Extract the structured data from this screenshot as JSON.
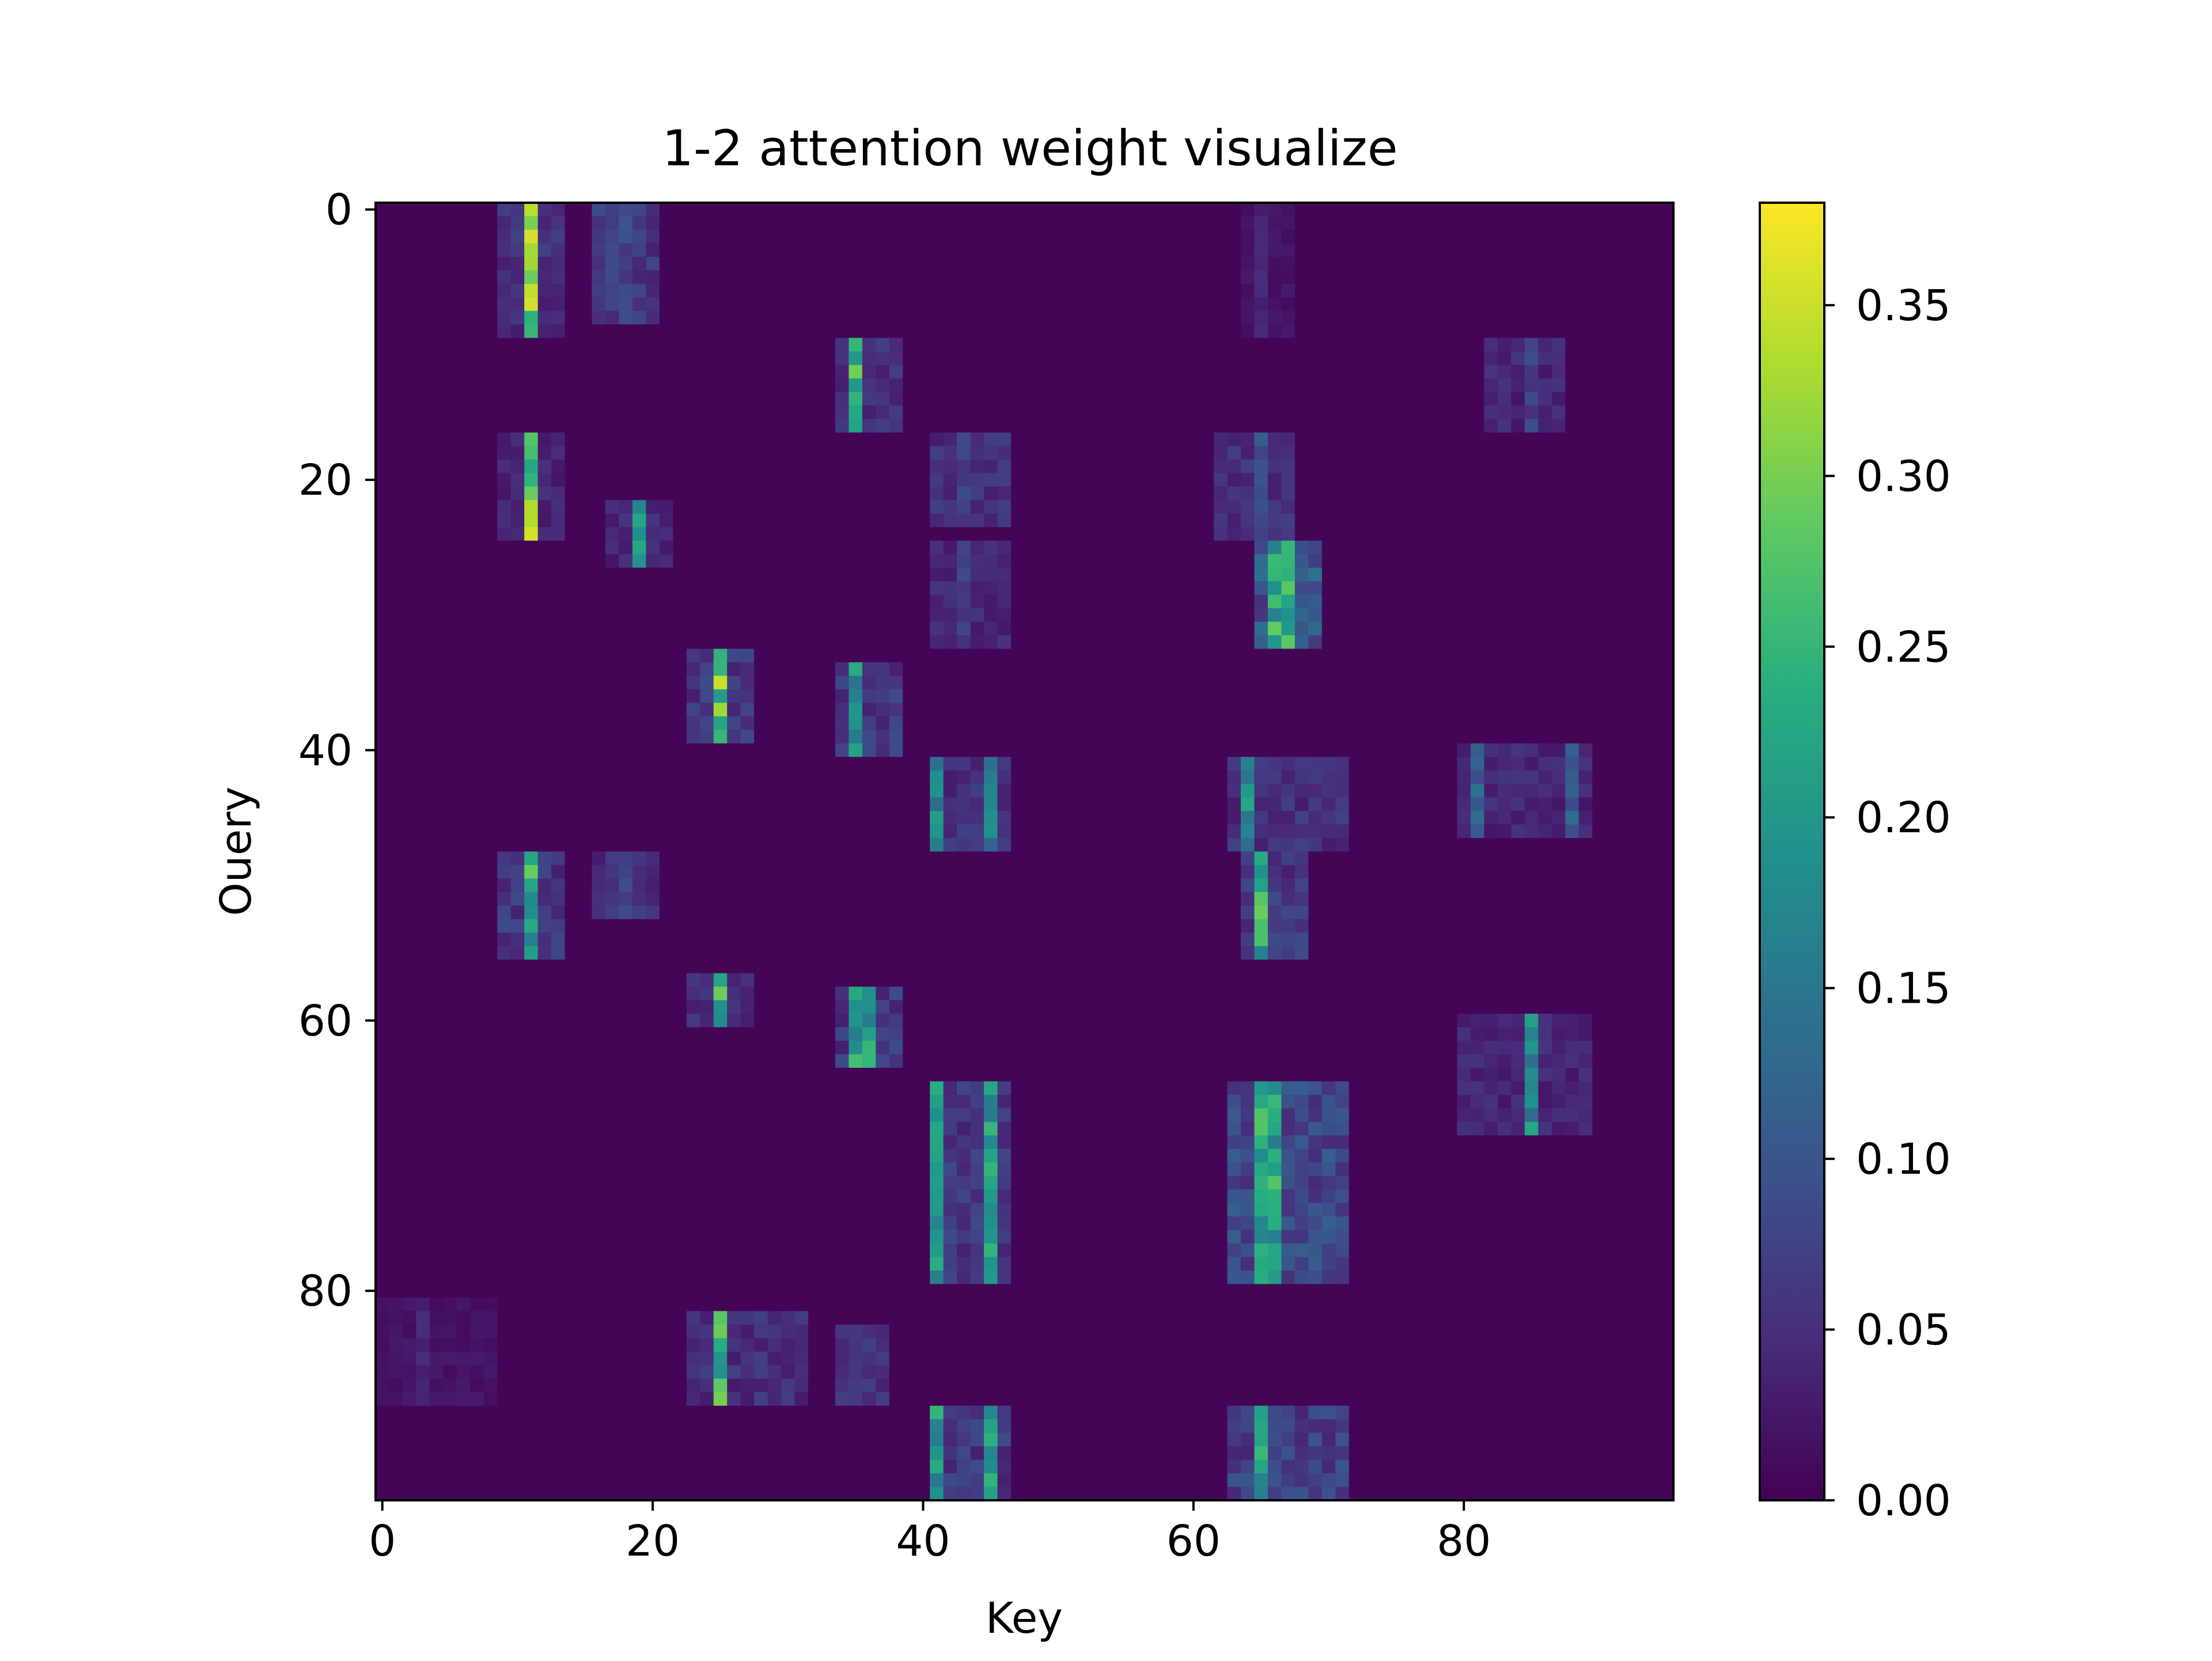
{
  "chart_data": {
    "type": "heatmap",
    "title": "1-2 attention weight visualize",
    "xlabel": "Key",
    "ylabel": "Ouery",
    "n_rows": 96,
    "n_cols": 96,
    "xlim": [
      0,
      95
    ],
    "ylim": [
      0,
      95
    ],
    "x_ticks": [
      0,
      20,
      40,
      60,
      80
    ],
    "y_ticks": [
      0,
      20,
      40,
      60,
      80
    ],
    "colorbar": {
      "vmin": 0.0,
      "vmax": 0.38,
      "ticks": [
        0.0,
        0.05,
        0.1,
        0.15,
        0.2,
        0.25,
        0.3,
        0.35
      ],
      "tick_labels": [
        "0.00",
        "0.05",
        "0.10",
        "0.15",
        "0.20",
        "0.25",
        "0.30",
        "0.35"
      ],
      "colormap": "viridis"
    },
    "blocks": [
      {
        "rows": [
          0,
          9
        ],
        "cols": [
          9,
          13
        ],
        "mean": 0.05,
        "peak": 0.37,
        "peak_cols": [
          11
        ]
      },
      {
        "rows": [
          0,
          8
        ],
        "cols": [
          16,
          20
        ],
        "mean": 0.06,
        "peak": 0.1,
        "peak_cols": [
          18
        ]
      },
      {
        "rows": [
          0,
          9
        ],
        "cols": [
          64,
          67
        ],
        "mean": 0.02,
        "peak": 0.05,
        "peak_cols": [
          65
        ]
      },
      {
        "rows": [
          10,
          16
        ],
        "cols": [
          34,
          38
        ],
        "mean": 0.05,
        "peak": 0.3,
        "peak_cols": [
          35
        ]
      },
      {
        "rows": [
          10,
          16
        ],
        "cols": [
          82,
          87
        ],
        "mean": 0.04,
        "peak": 0.09,
        "peak_cols": [
          85
        ]
      },
      {
        "rows": [
          17,
          24
        ],
        "cols": [
          9,
          13
        ],
        "mean": 0.04,
        "peak": 0.36,
        "peak_cols": [
          11
        ]
      },
      {
        "rows": [
          22,
          26
        ],
        "cols": [
          17,
          21
        ],
        "mean": 0.04,
        "peak": 0.27,
        "peak_cols": [
          19
        ]
      },
      {
        "rows": [
          17,
          23
        ],
        "cols": [
          41,
          46
        ],
        "mean": 0.05,
        "peak": 0.09,
        "peak_cols": [
          43
        ]
      },
      {
        "rows": [
          17,
          24
        ],
        "cols": [
          62,
          67
        ],
        "mean": 0.05,
        "peak": 0.12,
        "peak_cols": [
          65
        ]
      },
      {
        "rows": [
          25,
          32
        ],
        "cols": [
          41,
          46
        ],
        "mean": 0.04,
        "peak": 0.09,
        "peak_cols": [
          43
        ]
      },
      {
        "rows": [
          25,
          32
        ],
        "cols": [
          65,
          69
        ],
        "mean": 0.1,
        "peak": 0.3,
        "peak_cols": [
          66,
          67
        ]
      },
      {
        "rows": [
          33,
          39
        ],
        "cols": [
          23,
          27
        ],
        "mean": 0.06,
        "peak": 0.36,
        "peak_cols": [
          25
        ]
      },
      {
        "rows": [
          34,
          40
        ],
        "cols": [
          34,
          38
        ],
        "mean": 0.06,
        "peak": 0.25,
        "peak_cols": [
          35
        ]
      },
      {
        "rows": [
          41,
          47
        ],
        "cols": [
          41,
          46
        ],
        "mean": 0.05,
        "peak": 0.22,
        "peak_cols": [
          41,
          45
        ]
      },
      {
        "rows": [
          41,
          47
        ],
        "cols": [
          63,
          71
        ],
        "mean": 0.05,
        "peak": 0.24,
        "peak_cols": [
          64
        ]
      },
      {
        "rows": [
          40,
          46
        ],
        "cols": [
          80,
          89
        ],
        "mean": 0.04,
        "peak": 0.15,
        "peak_cols": [
          81,
          88
        ]
      },
      {
        "rows": [
          48,
          55
        ],
        "cols": [
          9,
          13
        ],
        "mean": 0.06,
        "peak": 0.29,
        "peak_cols": [
          11
        ]
      },
      {
        "rows": [
          48,
          52
        ],
        "cols": [
          16,
          20
        ],
        "mean": 0.05,
        "peak": 0.09,
        "peak_cols": [
          18
        ]
      },
      {
        "rows": [
          48,
          55
        ],
        "cols": [
          64,
          68
        ],
        "mean": 0.06,
        "peak": 0.3,
        "peak_cols": [
          65
        ]
      },
      {
        "rows": [
          57,
          60
        ],
        "cols": [
          23,
          27
        ],
        "mean": 0.05,
        "peak": 0.3,
        "peak_cols": [
          25
        ]
      },
      {
        "rows": [
          58,
          63
        ],
        "cols": [
          34,
          38
        ],
        "mean": 0.06,
        "peak": 0.28,
        "peak_cols": [
          35,
          36
        ]
      },
      {
        "rows": [
          60,
          68
        ],
        "cols": [
          80,
          89
        ],
        "mean": 0.04,
        "peak": 0.24,
        "peak_cols": [
          85
        ]
      },
      {
        "rows": [
          65,
          79
        ],
        "cols": [
          41,
          46
        ],
        "mean": 0.06,
        "peak": 0.25,
        "peak_cols": [
          41,
          45
        ]
      },
      {
        "rows": [
          65,
          79
        ],
        "cols": [
          63,
          71
        ],
        "mean": 0.08,
        "peak": 0.28,
        "peak_cols": [
          65,
          66
        ]
      },
      {
        "rows": [
          82,
          88
        ],
        "cols": [
          23,
          31
        ],
        "mean": 0.05,
        "peak": 0.3,
        "peak_cols": [
          25
        ]
      },
      {
        "rows": [
          83,
          88
        ],
        "cols": [
          34,
          37
        ],
        "mean": 0.05,
        "peak": 0.1,
        "peak_cols": [
          35
        ]
      },
      {
        "rows": [
          81,
          88
        ],
        "cols": [
          0,
          8
        ],
        "mean": 0.02,
        "peak": 0.05,
        "peak_cols": [
          3
        ]
      },
      {
        "rows": [
          89,
          95
        ],
        "cols": [
          41,
          46
        ],
        "mean": 0.06,
        "peak": 0.25,
        "peak_cols": [
          41,
          45
        ]
      },
      {
        "rows": [
          89,
          95
        ],
        "cols": [
          63,
          71
        ],
        "mean": 0.07,
        "peak": 0.27,
        "peak_cols": [
          65
        ]
      }
    ]
  }
}
